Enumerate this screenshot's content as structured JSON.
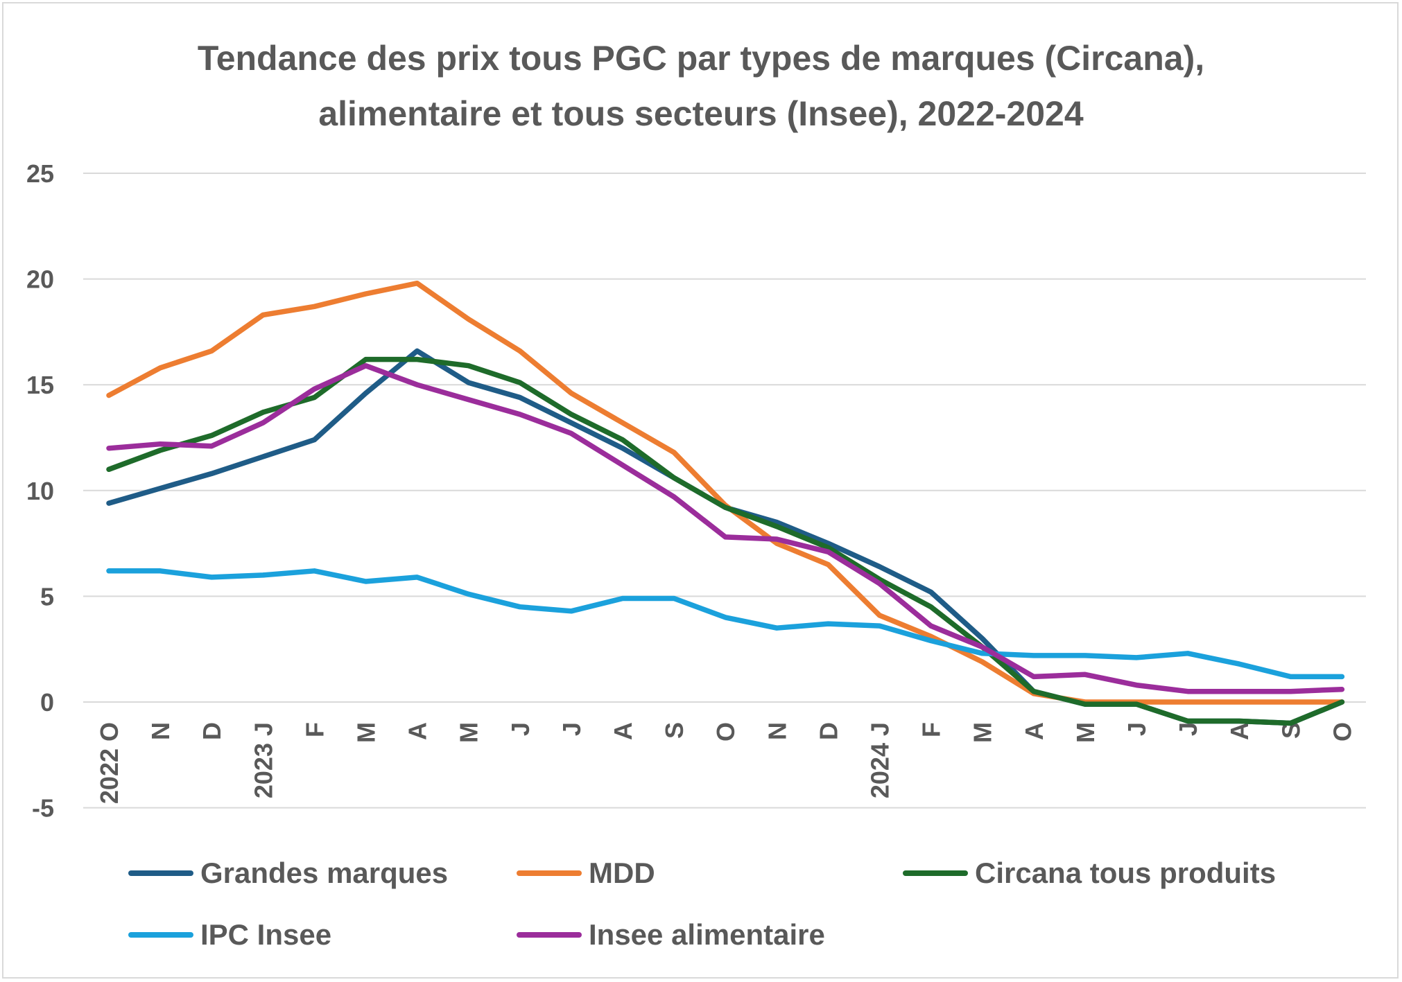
{
  "chart_data": {
    "type": "line",
    "title_lines": [
      "Tendance des prix tous PGC par types de marques (Circana),",
      "alimentaire et tous secteurs (Insee), 2022-2024"
    ],
    "xlabel": "",
    "ylabel": "",
    "ylim": [
      -5,
      25
    ],
    "yticks": [
      -5,
      0,
      5,
      10,
      15,
      20,
      25
    ],
    "grid": true,
    "legend_position": "bottom",
    "categories": [
      "2022 O",
      "N",
      "D",
      "2023 J",
      "F",
      "M",
      "A",
      "M",
      "J",
      "J",
      "A",
      "S",
      "O",
      "N",
      "D",
      "2024 J",
      "F",
      "M",
      "A",
      "M",
      "J",
      "J",
      "A",
      "S",
      "O"
    ],
    "series": [
      {
        "name": "Grandes marques",
        "color": "#1f5c87",
        "values": [
          9.4,
          10.1,
          10.8,
          11.6,
          12.4,
          14.6,
          16.6,
          15.1,
          14.4,
          13.2,
          12.0,
          10.6,
          9.2,
          8.5,
          7.5,
          6.4,
          5.2,
          3.0,
          0.5,
          -0.1,
          -0.1,
          -0.9,
          -0.9,
          -1.0,
          0.0
        ]
      },
      {
        "name": "MDD",
        "color": "#ed7d31",
        "values": [
          14.5,
          15.8,
          16.6,
          18.3,
          18.7,
          19.3,
          19.8,
          18.1,
          16.6,
          14.6,
          13.2,
          11.8,
          9.3,
          7.5,
          6.5,
          4.1,
          3.1,
          1.9,
          0.4,
          0.0,
          0.0,
          0.0,
          0.0,
          0.0,
          0.0
        ]
      },
      {
        "name": "Circana tous produits",
        "color": "#1e6b2a",
        "values": [
          11.0,
          11.9,
          12.6,
          13.7,
          14.4,
          16.2,
          16.2,
          15.9,
          15.1,
          13.6,
          12.4,
          10.6,
          9.2,
          8.3,
          7.3,
          5.8,
          4.5,
          2.6,
          0.5,
          -0.1,
          -0.1,
          -0.9,
          -0.9,
          -1.0,
          0.0
        ]
      },
      {
        "name": "IPC Insee",
        "color": "#1ba1dc",
        "values": [
          6.2,
          6.2,
          5.9,
          6.0,
          6.2,
          5.7,
          5.9,
          5.1,
          4.5,
          4.3,
          4.9,
          4.9,
          4.0,
          3.5,
          3.7,
          3.6,
          2.9,
          2.3,
          2.2,
          2.2,
          2.1,
          2.3,
          1.8,
          1.2,
          1.2
        ]
      },
      {
        "name": "Insee alimentaire",
        "color": "#9b2d9b",
        "values": [
          12.0,
          12.2,
          12.1,
          13.2,
          14.8,
          15.9,
          15.0,
          14.3,
          13.6,
          12.7,
          11.2,
          9.7,
          7.8,
          7.7,
          7.1,
          5.6,
          3.6,
          2.6,
          1.2,
          1.3,
          0.8,
          0.5,
          0.5,
          0.5,
          0.6
        ]
      }
    ]
  }
}
